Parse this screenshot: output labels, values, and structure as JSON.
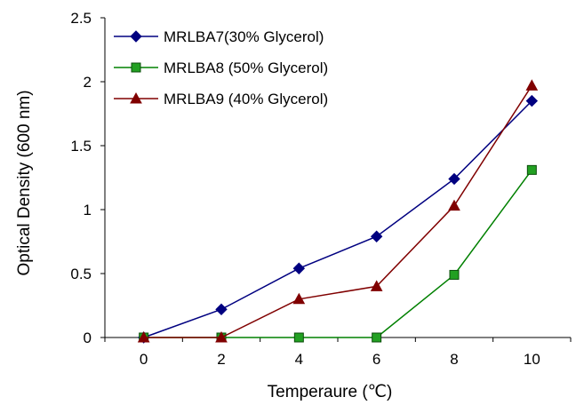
{
  "chart_data": {
    "type": "line",
    "title": "",
    "xlabel": "Temperaure (℃)",
    "ylabel": "Optical Density (600 nm)",
    "x": [
      0,
      2,
      4,
      6,
      8,
      10
    ],
    "ylim": [
      0,
      2.5
    ],
    "yticks": [
      "0",
      "0.5",
      "1",
      "1.5",
      "2",
      "2.5"
    ],
    "xticks": [
      "0",
      "2",
      "4",
      "6",
      "8",
      "10"
    ],
    "grid": false,
    "legend_position": "top-left",
    "series": [
      {
        "name": "MRLBA7(30% Glycerol)",
        "color": "#000080",
        "marker": "diamond",
        "values": [
          0,
          0.22,
          0.54,
          0.79,
          1.24,
          1.85
        ]
      },
      {
        "name": "MRLBA8 (50% Glycerol)",
        "color": "#008000",
        "marker": "square",
        "values": [
          0,
          0,
          0,
          0,
          0.49,
          1.31
        ]
      },
      {
        "name": "MRLBA9 (40% Glycerol)",
        "color": "#800000",
        "marker": "triangle",
        "values": [
          0,
          0,
          0.3,
          0.4,
          1.03,
          1.97
        ]
      }
    ]
  }
}
